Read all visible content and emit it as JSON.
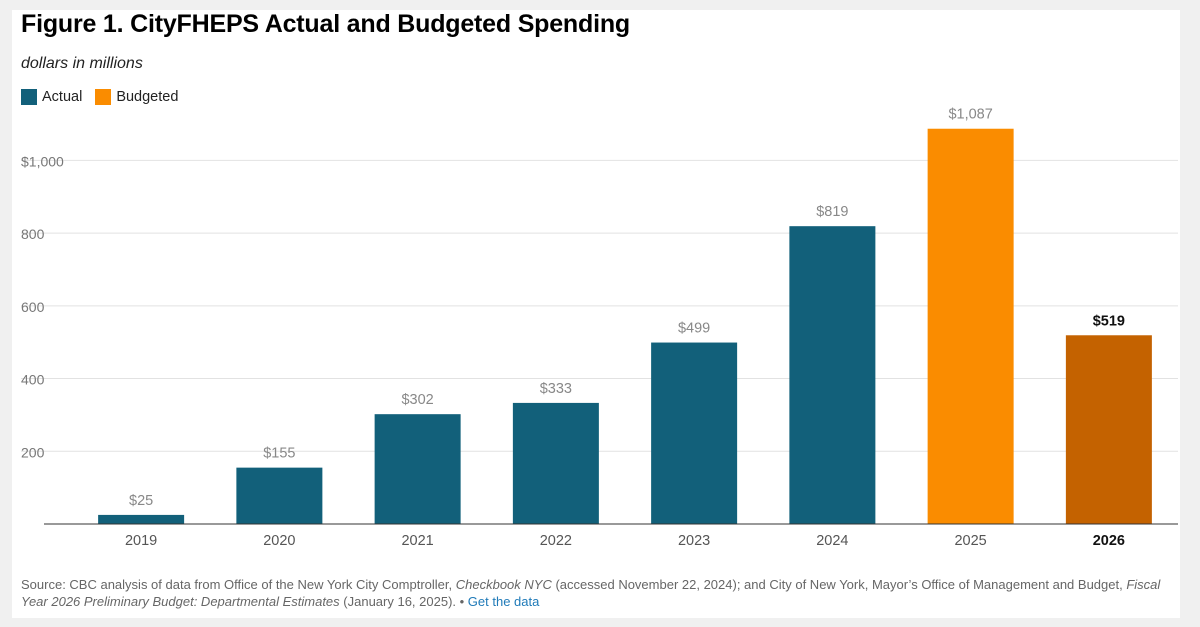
{
  "header": {
    "title": "Figure 1. CityFHEPS Actual and Budgeted Spending",
    "subtitle": "dollars in millions"
  },
  "legend": [
    {
      "label": "Actual",
      "color": "#12607a"
    },
    {
      "label": "Budgeted",
      "color": "#fa8c00"
    }
  ],
  "chart_data": {
    "type": "bar",
    "title": "Figure 1. CityFHEPS Actual and Budgeted Spending",
    "subtitle": "dollars in millions",
    "xlabel": "",
    "ylabel": "",
    "categories": [
      "2019",
      "2020",
      "2021",
      "2022",
      "2023",
      "2024",
      "2025",
      "2026"
    ],
    "values": [
      25,
      155,
      302,
      333,
      499,
      819,
      1087,
      519
    ],
    "data_labels": [
      "$25",
      "$155",
      "$302",
      "$333",
      "$499",
      "$819",
      "$1,087",
      "$519"
    ],
    "bar_types": [
      "Actual",
      "Actual",
      "Actual",
      "Actual",
      "Actual",
      "Actual",
      "Budgeted",
      "Budgeted"
    ],
    "bar_colors": [
      "#12607a",
      "#12607a",
      "#12607a",
      "#12607a",
      "#12607a",
      "#12607a",
      "#fa8c00",
      "#c46200"
    ],
    "highlight": "2026",
    "yticks": [
      200,
      400,
      600,
      800,
      1000
    ],
    "ytick_labels": [
      "200",
      "400",
      "600",
      "800",
      "$1,000"
    ],
    "ylim": [
      0,
      1100
    ],
    "grid": true,
    "legend_position": "top-left"
  },
  "footer": {
    "source_prefix": "Source: CBC analysis of data from Office of the New York City Comptroller, ",
    "source_title1": "Checkbook NYC",
    "source_middle": " (accessed November 22, 2024); and City of New York, Mayor’s Office of Management and Budget, ",
    "source_title2": "Fiscal Year 2026 Preliminary Budget: Departmental Estimates",
    "source_suffix": " (January 16, 2025). • ",
    "link_label": "Get the data"
  }
}
